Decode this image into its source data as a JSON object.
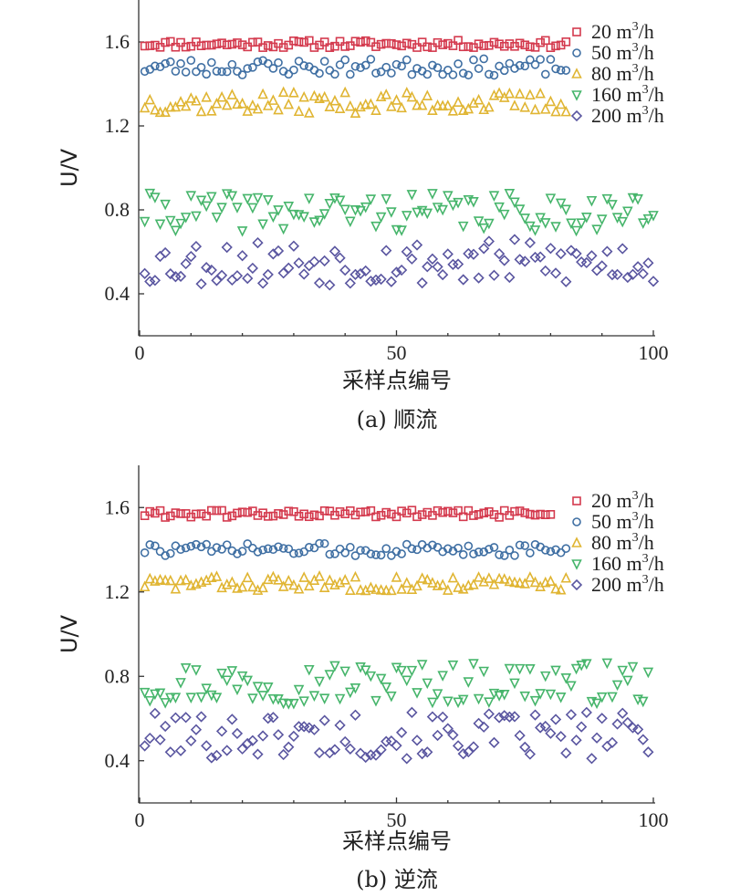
{
  "chart_data": [
    {
      "type": "scatter",
      "panel": "a",
      "caption": "(a) 顺流",
      "xlabel": "采样点编号",
      "ylabel": "U/V",
      "xlim": [
        0,
        100
      ],
      "ylim": [
        0.2,
        1.8
      ],
      "xticks": [
        0,
        50,
        100
      ],
      "yticks": [
        0.4,
        0.8,
        1.2,
        1.6
      ],
      "legend_position": "top-right",
      "series": [
        {
          "name": "20 m³/h",
          "name_base": "20 m",
          "name_sup": "3",
          "name_tail": "/h",
          "marker": "square",
          "color": "#d43a4e",
          "x_start": 1,
          "x_end": 83,
          "base": 1.59,
          "amp": 0.018,
          "seed": 11
        },
        {
          "name": "50 m³/h",
          "name_base": "50 m",
          "name_sup": "3",
          "name_tail": "/h",
          "marker": "circle",
          "color": "#3f6fa3",
          "x_start": 1,
          "x_end": 83,
          "base": 1.48,
          "amp": 0.04,
          "seed": 23
        },
        {
          "name": "80 m³/h",
          "name_base": "80 m",
          "name_sup": "3",
          "name_tail": "/h",
          "marker": "triangle-up",
          "color": "#e0b533",
          "x_start": 1,
          "x_end": 83,
          "base": 1.31,
          "amp": 0.05,
          "seed": 37
        },
        {
          "name": "160 m³/h",
          "name_base": "160 m",
          "name_sup": "3",
          "name_tail": "/h",
          "marker": "triangle-down",
          "color": "#46b56b",
          "x_start": 1,
          "x_end": 100,
          "base": 0.79,
          "amp": 0.09,
          "seed": 41
        },
        {
          "name": "200 m³/h",
          "name_base": "200 m",
          "name_sup": "3",
          "name_tail": "/h",
          "marker": "diamond",
          "color": "#5a56a0",
          "x_start": 1,
          "x_end": 100,
          "base": 0.55,
          "amp": 0.11,
          "seed": 53
        }
      ]
    },
    {
      "type": "scatter",
      "panel": "b",
      "caption": "(b) 逆流",
      "xlabel": "采样点编号",
      "ylabel": "U/V",
      "xlim": [
        0,
        100
      ],
      "ylim": [
        0.2,
        1.8
      ],
      "xticks": [
        0,
        50,
        100
      ],
      "yticks": [
        0.4,
        0.8,
        1.2,
        1.6
      ],
      "legend_position": "top-right",
      "series": [
        {
          "name": "20 m³/h",
          "name_base": "20 m",
          "name_sup": "3",
          "name_tail": "/h",
          "marker": "square",
          "color": "#d43a4e",
          "x_start": 1,
          "x_end": 80,
          "base": 1.57,
          "amp": 0.018,
          "seed": 61
        },
        {
          "name": "50 m³/h",
          "name_base": "50 m",
          "name_sup": "3",
          "name_tail": "/h",
          "marker": "circle",
          "color": "#3f6fa3",
          "x_start": 1,
          "x_end": 83,
          "base": 1.4,
          "amp": 0.03,
          "seed": 73
        },
        {
          "name": "80 m³/h",
          "name_base": "80 m",
          "name_sup": "3",
          "name_tail": "/h",
          "marker": "triangle-up",
          "color": "#e0b533",
          "x_start": 1,
          "x_end": 83,
          "base": 1.24,
          "amp": 0.035,
          "seed": 83
        },
        {
          "name": "160 m³/h",
          "name_base": "160 m",
          "name_sup": "3",
          "name_tail": "/h",
          "marker": "triangle-down",
          "color": "#46b56b",
          "x_start": 1,
          "x_end": 99,
          "base": 0.77,
          "amp": 0.1,
          "seed": 97
        },
        {
          "name": "200 m³/h",
          "name_base": "200 m",
          "name_sup": "3",
          "name_tail": "/h",
          "marker": "diamond",
          "color": "#5a56a0",
          "x_start": 1,
          "x_end": 99,
          "base": 0.52,
          "amp": 0.11,
          "seed": 101
        }
      ]
    }
  ]
}
